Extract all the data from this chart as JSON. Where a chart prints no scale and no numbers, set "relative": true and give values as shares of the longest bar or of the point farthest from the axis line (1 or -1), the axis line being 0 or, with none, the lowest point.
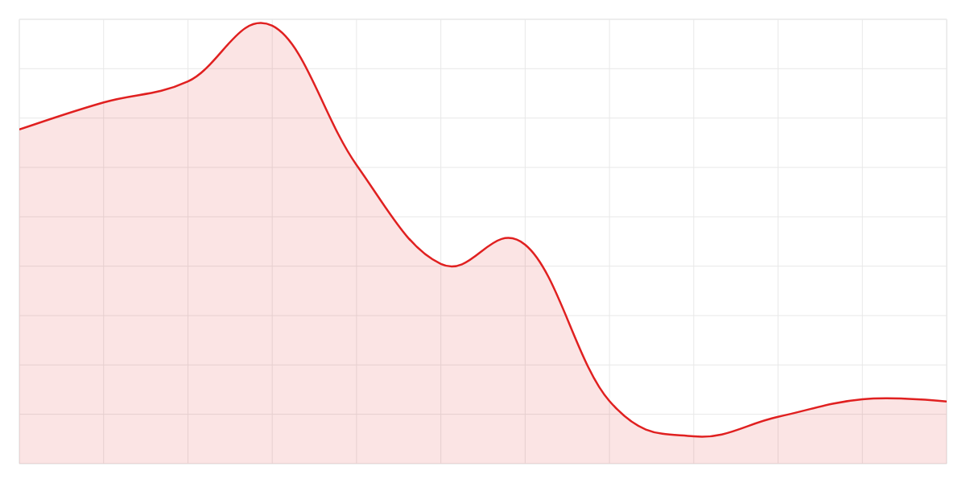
{
  "chart_data": {
    "type": "area",
    "relative": true,
    "grid": true,
    "color": "#e02020",
    "categories": [
      null,
      null,
      null,
      null,
      null,
      null,
      null,
      null,
      null,
      null,
      null,
      null
    ],
    "values": [
      0.763,
      0.825,
      0.873,
      1,
      0.682,
      0.456,
      0.5,
      0.143,
      0.0625,
      0.107,
      0.147,
      0.142
    ]
  }
}
